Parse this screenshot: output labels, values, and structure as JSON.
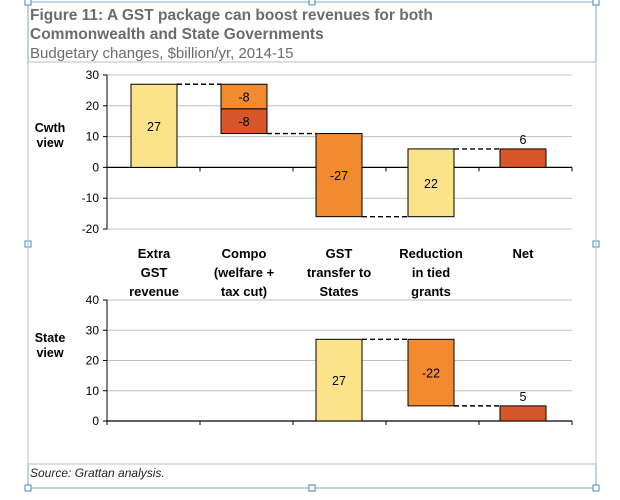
{
  "figure": {
    "title_line1": "Figure 11: A GST package can boost revenues for both",
    "title_line2": "Commonwealth and State Governments",
    "subtitle": "Budgetary changes, $billion/yr, 2014-15",
    "source": "Source: Grattan analysis."
  },
  "colors": {
    "yellow": "#fce38a",
    "orange": "#f28a2f",
    "dark_orange": "#d8572a",
    "selection_handle": "#4a86c8"
  },
  "chart_data": [
    {
      "type": "bar",
      "subtype": "waterfall",
      "panel_label_line1": "Cwth",
      "panel_label_line2": "view",
      "ylim": [
        -20,
        30
      ],
      "yticks": [
        "30",
        "20",
        "10",
        "0",
        "-10",
        "-20"
      ],
      "categories": [
        [
          "Extra",
          "GST",
          "revenue"
        ],
        [
          "Compo",
          "(welfare +",
          "tax cut)"
        ],
        [
          "GST",
          "transfer to",
          "States"
        ],
        [
          "Reduction",
          "in tied",
          "grants"
        ],
        [
          "Net"
        ]
      ],
      "segments": [
        {
          "category": 0,
          "from": 0,
          "to": 27,
          "value": 27,
          "label": "27",
          "color": "yellow",
          "label_pos": "inside"
        },
        {
          "category": 1,
          "from": 27,
          "to": 19,
          "value": -8,
          "label": "-8",
          "color": "orange",
          "label_pos": "inside"
        },
        {
          "category": 1,
          "from": 19,
          "to": 11,
          "value": -8,
          "label": "-8",
          "color": "dark_orange",
          "label_pos": "inside"
        },
        {
          "category": 2,
          "from": 11,
          "to": -16,
          "value": -27,
          "label": "-27",
          "color": "orange",
          "label_pos": "inside"
        },
        {
          "category": 3,
          "from": -16,
          "to": 6,
          "value": 22,
          "label": "22",
          "color": "yellow",
          "label_pos": "inside"
        },
        {
          "category": 4,
          "from": 0,
          "to": 6,
          "value": 6,
          "label": "6",
          "color": "dark_orange",
          "label_pos": "above"
        }
      ],
      "connectors": [
        {
          "from_category": 0,
          "to_category": 1,
          "value": 27
        },
        {
          "from_category": 1,
          "to_category": 2,
          "value": 11
        },
        {
          "from_category": 2,
          "to_category": 3,
          "value": -16
        },
        {
          "from_category": 3,
          "to_category": 4,
          "value": 6
        }
      ]
    },
    {
      "type": "bar",
      "subtype": "waterfall",
      "panel_label_line1": "State",
      "panel_label_line2": "view",
      "ylim": [
        0,
        40
      ],
      "yticks": [
        "40",
        "30",
        "20",
        "10",
        "0"
      ],
      "segments": [
        {
          "category": 2,
          "from": 0,
          "to": 27,
          "value": 27,
          "label": "27",
          "color": "yellow",
          "label_pos": "inside"
        },
        {
          "category": 3,
          "from": 27,
          "to": 5,
          "value": -22,
          "label": "-22",
          "color": "orange",
          "label_pos": "inside"
        },
        {
          "category": 4,
          "from": 0,
          "to": 5,
          "value": 5,
          "label": "5",
          "color": "dark_orange",
          "label_pos": "above"
        }
      ],
      "connectors": [
        {
          "from_category": 2,
          "to_category": 3,
          "value": 27
        },
        {
          "from_category": 3,
          "to_category": 4,
          "value": 5
        }
      ]
    }
  ]
}
